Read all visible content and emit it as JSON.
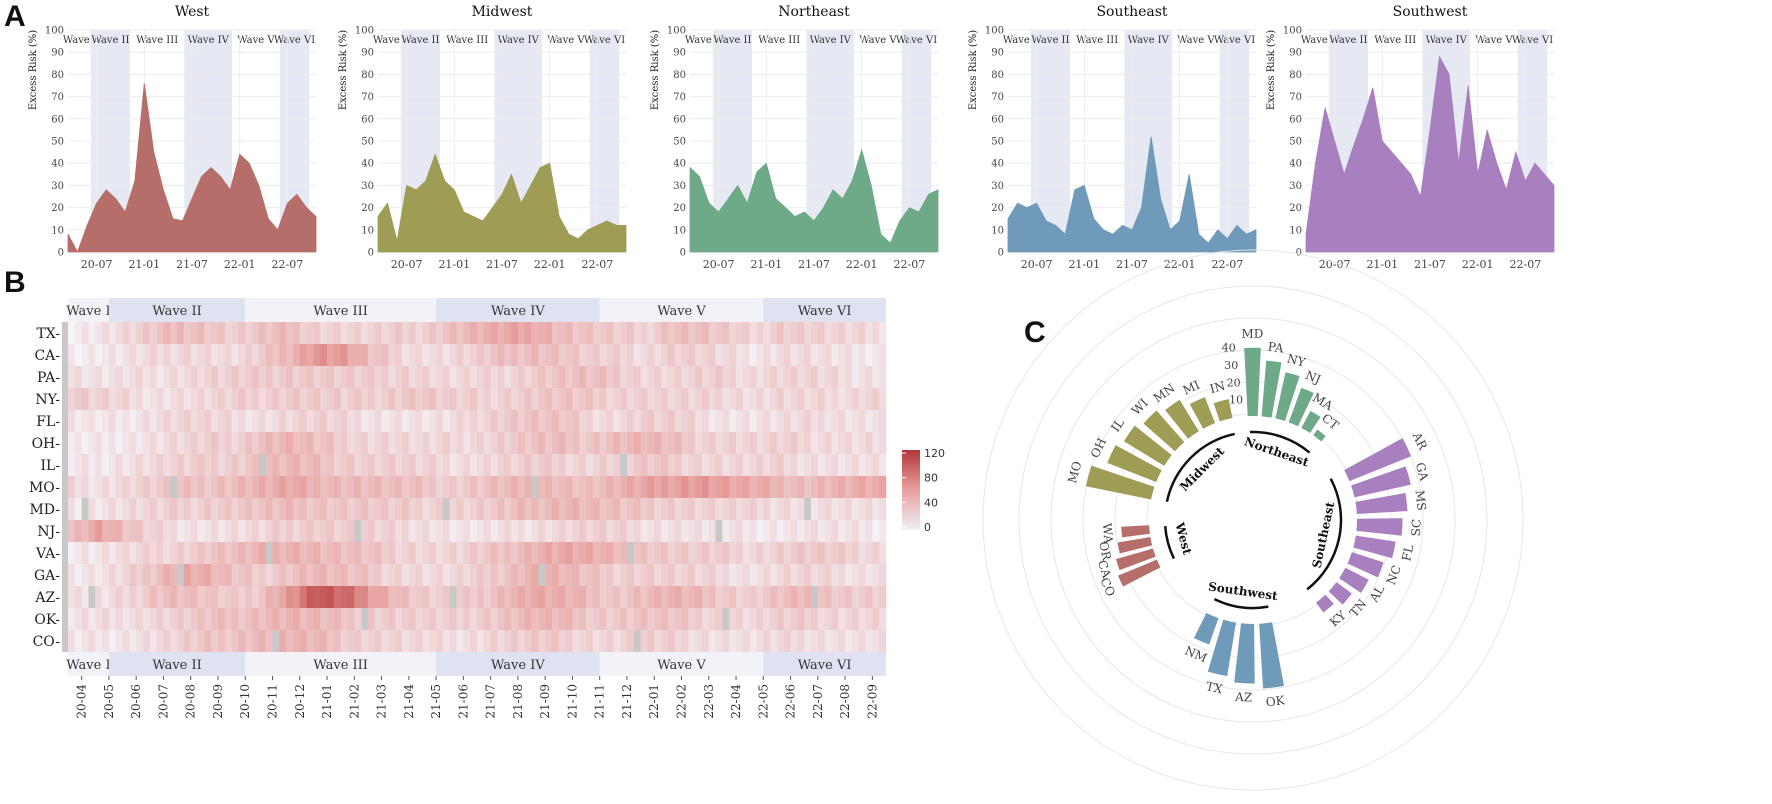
{
  "panels": {
    "a": "A",
    "b": "B",
    "c": "C"
  },
  "waves": [
    "Wave I",
    "Wave II",
    "Wave III",
    "Wave IV",
    "Wave V",
    "Wave VI"
  ],
  "colors": {
    "West": "#b66e6a",
    "Midwest": "#9e9c55",
    "Northeast": "#6faa88",
    "Southeast": "#6f9ab9",
    "Southwest": "#a87fbf",
    "wave_shade": "#e6e9f4",
    "heat_low": "#f4f5fa",
    "heat_high": "#b3363a",
    "missing": "#c8c8c8"
  },
  "chart_data": [
    {
      "type": "area",
      "panel": "A",
      "ylabel": "Excess Risk (%)",
      "ylim": [
        0,
        100
      ],
      "yticks": [
        0,
        10,
        20,
        30,
        40,
        50,
        60,
        70,
        80,
        90,
        100
      ],
      "xticks": [
        "20-07",
        "21-01",
        "21-07",
        "22-01",
        "22-07"
      ],
      "x_range": [
        "2020-03",
        "2022-10"
      ],
      "waves": [
        "Wave I",
        "Wave II",
        "Wave III",
        "Wave IV",
        "Wave V",
        "Wave VI"
      ],
      "wave_bounds": [
        [
          2020.21,
          2020.44
        ],
        [
          2020.44,
          2020.85
        ],
        [
          2020.85,
          2021.42
        ],
        [
          2021.42,
          2021.92
        ],
        [
          2021.92,
          2022.42
        ],
        [
          2022.42,
          2022.73
        ]
      ],
      "shaded_waves": [
        "Wave II",
        "Wave IV",
        "Wave VI"
      ],
      "x_dates": [
        2020.2,
        2020.3,
        2020.4,
        2020.5,
        2020.6,
        2020.7,
        2020.8,
        2020.9,
        2021.0,
        2021.1,
        2021.2,
        2021.3,
        2021.4,
        2021.5,
        2021.6,
        2021.7,
        2021.8,
        2021.9,
        2022.0,
        2022.1,
        2022.2,
        2022.3,
        2022.4,
        2022.5,
        2022.6,
        2022.7,
        2022.8
      ],
      "series": [
        {
          "name": "West",
          "values": [
            8,
            0,
            12,
            22,
            28,
            24,
            18,
            32,
            76,
            45,
            28,
            15,
            14,
            24,
            34,
            38,
            34,
            28,
            44,
            40,
            30,
            15,
            10,
            22,
            26,
            20,
            16
          ]
        },
        {
          "name": "Midwest",
          "values": [
            16,
            22,
            5,
            30,
            28,
            32,
            44,
            32,
            28,
            18,
            16,
            14,
            20,
            26,
            35,
            22,
            30,
            38,
            40,
            16,
            8,
            6,
            10,
            12,
            14,
            12,
            12
          ]
        },
        {
          "name": "Northeast",
          "values": [
            38,
            34,
            22,
            18,
            24,
            30,
            22,
            36,
            40,
            24,
            20,
            16,
            18,
            14,
            20,
            28,
            24,
            32,
            46,
            30,
            8,
            4,
            14,
            20,
            18,
            26,
            28
          ]
        },
        {
          "name": "Southeast",
          "values": [
            15,
            22,
            20,
            22,
            14,
            12,
            8,
            28,
            30,
            15,
            10,
            8,
            12,
            10,
            20,
            52,
            24,
            10,
            14,
            35,
            8,
            4,
            10,
            6,
            12,
            8,
            10
          ]
        },
        {
          "name": "Southwest",
          "values": [
            8,
            40,
            65,
            50,
            35,
            48,
            60,
            74,
            50,
            45,
            40,
            35,
            25,
            55,
            88,
            80,
            40,
            75,
            35,
            55,
            40,
            28,
            45,
            32,
            40,
            35,
            30
          ]
        }
      ]
    },
    {
      "type": "heatmap",
      "panel": "B",
      "rows": [
        "TX",
        "CA",
        "PA",
        "NY",
        "FL",
        "OH",
        "IL",
        "MO",
        "MD",
        "NJ",
        "VA",
        "GA",
        "AZ",
        "OK",
        "CO"
      ],
      "x_labels": [
        "20-04",
        "20-05",
        "20-06",
        "20-07",
        "20-08",
        "20-09",
        "20-10",
        "20-11",
        "20-12",
        "21-01",
        "21-02",
        "21-03",
        "21-04",
        "21-05",
        "21-06",
        "21-07",
        "21-08",
        "21-09",
        "21-10",
        "21-11",
        "21-12",
        "22-01",
        "22-02",
        "22-03",
        "22-04",
        "22-05",
        "22-06",
        "22-07",
        "22-08",
        "22-09"
      ],
      "waves": [
        "Wave I",
        "Wave II",
        "Wave III",
        "Wave IV",
        "Wave V",
        "Wave VI"
      ],
      "wave_month_spans": [
        [
          0,
          1.5
        ],
        [
          1.5,
          6.5
        ],
        [
          6.5,
          13.5
        ],
        [
          13.5,
          19.5
        ],
        [
          19.5,
          25.5
        ],
        [
          25.5,
          29.5
        ]
      ],
      "color_scale": {
        "min": 0,
        "max": 130,
        "ticks": [
          0,
          40,
          80,
          120
        ]
      },
      "cell_values": [
        [
          10,
          14,
          22,
          32,
          46,
          40,
          28,
          36,
          42,
          30,
          26,
          24,
          28,
          32,
          42,
          50,
          56,
          60,
          44,
          36,
          30,
          26,
          42,
          40,
          32,
          22,
          34,
          30,
          24,
          20
        ],
        [
          8,
          10,
          14,
          20,
          26,
          22,
          18,
          30,
          50,
          72,
          66,
          40,
          26,
          20,
          22,
          30,
          40,
          46,
          38,
          28,
          26,
          22,
          30,
          28,
          18,
          14,
          22,
          20,
          14,
          12
        ],
        [
          18,
          14,
          16,
          18,
          22,
          26,
          28,
          32,
          36,
          34,
          30,
          28,
          30,
          26,
          20,
          22,
          26,
          32,
          38,
          40,
          34,
          26,
          24,
          26,
          28,
          22,
          26,
          24,
          20,
          18
        ],
        [
          34,
          26,
          20,
          18,
          20,
          22,
          26,
          30,
          34,
          32,
          28,
          30,
          34,
          36,
          28,
          26,
          30,
          34,
          36,
          32,
          30,
          28,
          26,
          24,
          26,
          20,
          24,
          22,
          20,
          26
        ],
        [
          12,
          10,
          12,
          20,
          26,
          24,
          18,
          20,
          24,
          26,
          22,
          18,
          16,
          14,
          16,
          28,
          34,
          38,
          36,
          24,
          22,
          30,
          28,
          20,
          16,
          14,
          18,
          20,
          22,
          16
        ],
        [
          6,
          8,
          14,
          18,
          22,
          26,
          30,
          42,
          48,
          38,
          30,
          26,
          24,
          20,
          22,
          26,
          32,
          38,
          40,
          36,
          44,
          48,
          40,
          30,
          28,
          24,
          26,
          24,
          22,
          20
        ],
        [
          10,
          12,
          18,
          22,
          26,
          30,
          32,
          40,
          46,
          40,
          34,
          30,
          28,
          24,
          20,
          22,
          26,
          30,
          28,
          26,
          30,
          34,
          32,
          26,
          24,
          22,
          24,
          20,
          18,
          16
        ],
        [
          20,
          18,
          24,
          30,
          36,
          40,
          44,
          52,
          58,
          50,
          46,
          44,
          40,
          36,
          32,
          38,
          44,
          50,
          46,
          40,
          48,
          58,
          66,
          70,
          62,
          54,
          48,
          44,
          50,
          54
        ],
        [
          14,
          16,
          20,
          24,
          28,
          32,
          34,
          38,
          42,
          40,
          36,
          34,
          30,
          28,
          26,
          30,
          36,
          44,
          50,
          46,
          38,
          34,
          32,
          28,
          24,
          22,
          24,
          20,
          18,
          16
        ],
        [
          40,
          62,
          40,
          24,
          18,
          16,
          18,
          22,
          30,
          34,
          30,
          26,
          22,
          20,
          14,
          12,
          16,
          20,
          24,
          28,
          24,
          20,
          18,
          16,
          14,
          12,
          14,
          16,
          14,
          12
        ],
        [
          12,
          14,
          18,
          24,
          30,
          36,
          40,
          48,
          54,
          48,
          42,
          36,
          30,
          26,
          24,
          30,
          40,
          52,
          60,
          54,
          44,
          38,
          34,
          30,
          28,
          24,
          30,
          34,
          30,
          26
        ],
        [
          10,
          14,
          22,
          40,
          60,
          52,
          36,
          30,
          40,
          46,
          40,
          34,
          26,
          22,
          20,
          28,
          40,
          54,
          48,
          36,
          30,
          32,
          28,
          24,
          20,
          18,
          22,
          24,
          20,
          18
        ],
        [
          16,
          14,
          22,
          40,
          44,
          36,
          28,
          40,
          70,
          110,
          96,
          70,
          44,
          30,
          26,
          36,
          48,
          58,
          52,
          42,
          36,
          44,
          50,
          44,
          36,
          28,
          40,
          46,
          38,
          32
        ],
        [
          14,
          16,
          20,
          24,
          30,
          36,
          40,
          46,
          50,
          44,
          38,
          34,
          30,
          28,
          26,
          32,
          40,
          48,
          44,
          36,
          34,
          38,
          36,
          30,
          26,
          22,
          28,
          30,
          26,
          24
        ],
        [
          10,
          12,
          16,
          20,
          26,
          34,
          40,
          46,
          50,
          44,
          36,
          28,
          24,
          20,
          18,
          22,
          28,
          32,
          30,
          26,
          24,
          28,
          26,
          22,
          18,
          16,
          20,
          22,
          18,
          16
        ]
      ]
    },
    {
      "type": "bar",
      "subtype": "circular",
      "panel": "C",
      "rlim": [
        0,
        40
      ],
      "rticks": [
        10,
        20,
        30,
        40
      ],
      "groups": [
        {
          "name": "Northeast",
          "labels": [
            "MD",
            "PA",
            "NY",
            "NJ",
            "MA",
            "CT"
          ],
          "values": [
            39,
            32,
            27,
            21,
            11,
            4
          ]
        },
        {
          "name": "Southeast",
          "labels": [
            "AR",
            "GA",
            "MS",
            "SC",
            "FL",
            "NC",
            "AL",
            "TN",
            "KY"
          ],
          "values": [
            38,
            33,
            29,
            26,
            23,
            19,
            15,
            11,
            7
          ]
        },
        {
          "name": "Southwest",
          "labels": [
            "OK",
            "AZ",
            "TX",
            "NM"
          ],
          "values": [
            37,
            34,
            31,
            16
          ]
        },
        {
          "name": "West",
          "labels": [
            "CO",
            "CA",
            "OR",
            "WA"
          ],
          "values": [
            24,
            22,
            19,
            16
          ]
        },
        {
          "name": "Midwest",
          "labels": [
            "MO",
            "OH",
            "IL",
            "WI",
            "MN",
            "MI",
            "IN"
          ],
          "values": [
            38,
            30,
            27,
            24,
            21,
            16,
            11
          ]
        }
      ]
    }
  ]
}
